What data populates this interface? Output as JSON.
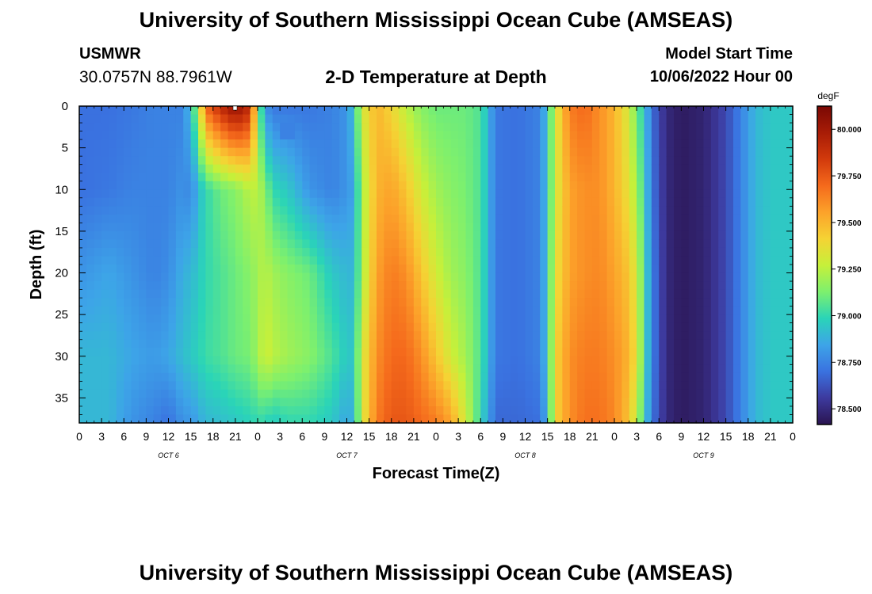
{
  "header": {
    "title": "University of Southern Mississippi Ocean Cube (AMSEAS)",
    "station_id": "USMWR",
    "station_coords": "30.0757N  88.7961W",
    "plot_title": "2-D Temperature at Depth",
    "model_start_label": "Model Start Time",
    "model_start_value": "10/06/2022 Hour 00"
  },
  "footer": {
    "title": "University of Southern Mississippi Ocean Cube (AMSEAS)"
  },
  "colors": {
    "frame": "#000000",
    "background": "#ffffff",
    "colormap": [
      "#2a1450",
      "#3d3a9e",
      "#3a72e0",
      "#3da4e8",
      "#2ad4b8",
      "#7df06e",
      "#c6f03a",
      "#f5d334",
      "#fca22a",
      "#f56a1c",
      "#d23a0c",
      "#a81c06",
      "#7a0804"
    ]
  },
  "chart_data": {
    "type": "heatmap",
    "title": "2-D Temperature at Depth",
    "xlabel": "Forecast Time(Z)",
    "ylabel": "Depth (ft)",
    "x_tick_labels": [
      "0",
      "3",
      "6",
      "9",
      "12",
      "15",
      "18",
      "21",
      "0",
      "3",
      "6",
      "9",
      "12",
      "15",
      "18",
      "21",
      "0",
      "3",
      "6",
      "9",
      "12",
      "15",
      "18",
      "21",
      "0",
      "3",
      "6",
      "9",
      "12",
      "15",
      "18",
      "21",
      "0"
    ],
    "x_hours": [
      0,
      96
    ],
    "day_labels": [
      {
        "label": "OCT 6",
        "hour": 12
      },
      {
        "label": "OCT 7",
        "hour": 36
      },
      {
        "label": "OCT 8",
        "hour": 60
      },
      {
        "label": "OCT 9",
        "hour": 84
      }
    ],
    "ylim": [
      0,
      38
    ],
    "y_ticks": [
      0,
      5,
      10,
      15,
      20,
      25,
      30,
      35
    ],
    "y_tick_labels": [
      "0",
      "5",
      "10",
      "15",
      "20",
      "25",
      "30",
      "35"
    ],
    "colorbar": {
      "unit": "degF",
      "range": [
        78.42,
        80.12
      ],
      "ticks": [
        80.0,
        79.75,
        79.5,
        79.25,
        79.0,
        78.75,
        78.5
      ],
      "tick_labels": [
        "80.000",
        "79.750",
        "79.500",
        "79.250",
        "79.000",
        "78.750",
        "78.500"
      ]
    },
    "depth_levels_ft": [
      0,
      10,
      20,
      30,
      38
    ],
    "temperature_columns": [
      {
        "hour": 0,
        "values": [
          78.7,
          78.7,
          78.8,
          78.9,
          78.9
        ]
      },
      {
        "hour": 4,
        "values": [
          78.7,
          78.72,
          78.85,
          78.9,
          78.9
        ]
      },
      {
        "hour": 7,
        "values": [
          78.72,
          78.75,
          78.8,
          78.85,
          78.8
        ]
      },
      {
        "hour": 10,
        "values": [
          78.75,
          78.75,
          78.75,
          78.82,
          78.75
        ]
      },
      {
        "hour": 12,
        "values": [
          78.75,
          78.75,
          78.78,
          78.85,
          78.7
        ]
      },
      {
        "hour": 14,
        "values": [
          78.75,
          78.8,
          78.88,
          78.92,
          78.8
        ]
      },
      {
        "hour": 15,
        "values": [
          78.95,
          78.75,
          78.9,
          78.95,
          78.8
        ]
      },
      {
        "hour": 16,
        "values": [
          79.2,
          78.9,
          78.95,
          78.98,
          78.85
        ]
      },
      {
        "hour": 17,
        "values": [
          79.7,
          79.0,
          79.0,
          79.02,
          78.9
        ]
      },
      {
        "hour": 19,
        "values": [
          79.9,
          79.1,
          79.05,
          79.05,
          78.92
        ]
      },
      {
        "hour": 21,
        "values": [
          80.05,
          79.15,
          79.1,
          79.1,
          78.95
        ]
      },
      {
        "hour": 23,
        "values": [
          79.9,
          79.25,
          79.15,
          79.12,
          78.98
        ]
      },
      {
        "hour": 24,
        "values": [
          79.2,
          79.25,
          79.2,
          79.2,
          79.0
        ]
      },
      {
        "hour": 25,
        "values": [
          78.8,
          79.15,
          79.25,
          79.3,
          79.0
        ]
      },
      {
        "hour": 26,
        "values": [
          78.72,
          79.0,
          79.2,
          79.25,
          78.95
        ]
      },
      {
        "hour": 28,
        "values": [
          78.72,
          78.95,
          79.15,
          79.2,
          79.0
        ]
      },
      {
        "hour": 31,
        "values": [
          78.72,
          78.8,
          79.1,
          79.15,
          79.0
        ]
      },
      {
        "hour": 34,
        "values": [
          78.75,
          78.75,
          78.95,
          79.05,
          78.95
        ]
      },
      {
        "hour": 36,
        "values": [
          78.8,
          78.8,
          78.9,
          78.95,
          78.85
        ]
      },
      {
        "hour": 37,
        "values": [
          78.95,
          78.85,
          78.9,
          78.95,
          78.9
        ]
      },
      {
        "hour": 38,
        "values": [
          79.3,
          79.2,
          79.2,
          79.3,
          79.3
        ]
      },
      {
        "hour": 40,
        "values": [
          79.5,
          79.5,
          79.55,
          79.6,
          79.65
        ]
      },
      {
        "hour": 42,
        "values": [
          79.4,
          79.55,
          79.65,
          79.7,
          79.75
        ]
      },
      {
        "hour": 44,
        "values": [
          79.25,
          79.45,
          79.6,
          79.7,
          79.75
        ]
      },
      {
        "hour": 46,
        "values": [
          79.15,
          79.3,
          79.45,
          79.6,
          79.7
        ]
      },
      {
        "hour": 48,
        "values": [
          79.1,
          79.2,
          79.3,
          79.45,
          79.65
        ]
      },
      {
        "hour": 50,
        "values": [
          79.1,
          79.15,
          79.2,
          79.3,
          79.55
        ]
      },
      {
        "hour": 52,
        "values": [
          79.1,
          79.12,
          79.15,
          79.2,
          79.3
        ]
      },
      {
        "hour": 54,
        "values": [
          79.05,
          79.05,
          79.05,
          79.05,
          79.0
        ]
      },
      {
        "hour": 55,
        "values": [
          78.9,
          78.9,
          78.9,
          78.9,
          78.85
        ]
      },
      {
        "hour": 56,
        "values": [
          78.72,
          78.72,
          78.72,
          78.72,
          78.68
        ]
      },
      {
        "hour": 59,
        "values": [
          78.7,
          78.7,
          78.7,
          78.7,
          78.68
        ]
      },
      {
        "hour": 62,
        "values": [
          78.75,
          78.75,
          78.75,
          78.75,
          78.7
        ]
      },
      {
        "hour": 63,
        "values": [
          78.95,
          78.95,
          78.95,
          78.95,
          78.9
        ]
      },
      {
        "hour": 64,
        "values": [
          79.3,
          79.3,
          79.35,
          79.4,
          79.4
        ]
      },
      {
        "hour": 66,
        "values": [
          79.65,
          79.55,
          79.55,
          79.6,
          79.6
        ]
      },
      {
        "hour": 68,
        "values": [
          79.7,
          79.6,
          79.6,
          79.65,
          79.68
        ]
      },
      {
        "hour": 70,
        "values": [
          79.6,
          79.6,
          79.62,
          79.65,
          79.68
        ]
      },
      {
        "hour": 72,
        "values": [
          79.5,
          79.5,
          79.55,
          79.6,
          79.62
        ]
      },
      {
        "hour": 74,
        "values": [
          79.3,
          79.35,
          79.45,
          79.5,
          79.45
        ]
      },
      {
        "hour": 75,
        "values": [
          79.1,
          79.2,
          79.3,
          79.35,
          79.25
        ]
      },
      {
        "hour": 76,
        "values": [
          78.95,
          79.0,
          79.05,
          79.05,
          79.0
        ]
      },
      {
        "hour": 77,
        "values": [
          78.7,
          78.72,
          78.75,
          78.75,
          78.72
        ]
      },
      {
        "hour": 79,
        "values": [
          78.5,
          78.5,
          78.5,
          78.5,
          78.5
        ]
      },
      {
        "hour": 81,
        "values": [
          78.45,
          78.45,
          78.45,
          78.45,
          78.45
        ]
      },
      {
        "hour": 84,
        "values": [
          78.48,
          78.48,
          78.48,
          78.48,
          78.48
        ]
      },
      {
        "hour": 87,
        "values": [
          78.6,
          78.6,
          78.6,
          78.6,
          78.6
        ]
      },
      {
        "hour": 89,
        "values": [
          78.75,
          78.75,
          78.75,
          78.75,
          78.75
        ]
      },
      {
        "hour": 91,
        "values": [
          78.9,
          78.9,
          78.9,
          78.9,
          78.9
        ]
      },
      {
        "hour": 93,
        "values": [
          78.95,
          78.95,
          78.95,
          78.95,
          78.95
        ]
      },
      {
        "hour": 96,
        "values": [
          78.95,
          78.95,
          78.95,
          78.95,
          78.95
        ]
      }
    ],
    "anomalies": [
      {
        "hour_start": 27,
        "hour_end": 29,
        "depth_start": 2,
        "depth_end": 4,
        "value": 78.75
      }
    ]
  }
}
